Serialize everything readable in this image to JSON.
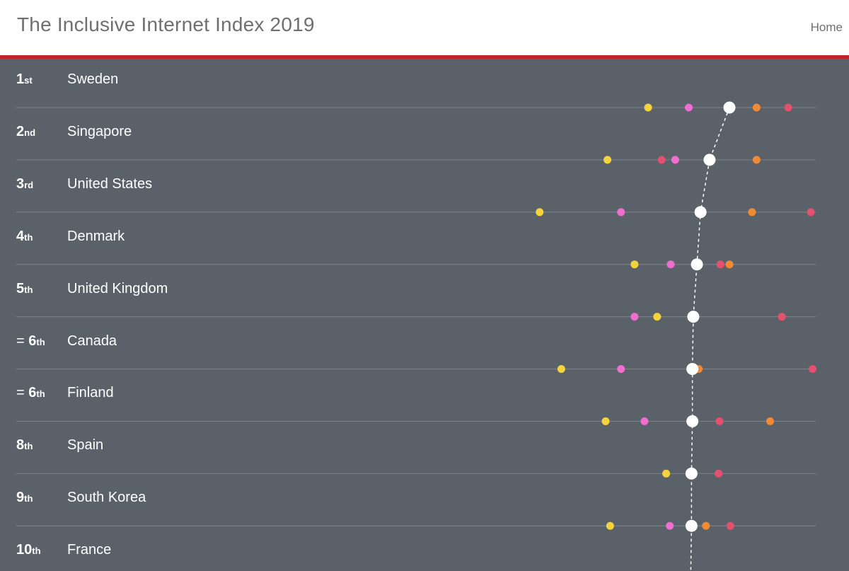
{
  "header": {
    "title": "The Inclusive Internet Index 2019",
    "home_label": "Home"
  },
  "colors": {
    "background": "#5b6168",
    "accent": "#c1232b",
    "overall_dot": "#ffffff",
    "connector": "#ffffff",
    "row_line": "#7e848b"
  },
  "chart_data": {
    "type": "scatter",
    "title": "",
    "xlabel": "",
    "ylabel": "",
    "xlim": [
      60,
      100
    ],
    "grid": false,
    "legend": "none",
    "category_colors": [
      "#f5d33c",
      "#ee6fd0",
      "#f08a35",
      "#e4506e"
    ],
    "rows": [
      {
        "rank_prefix": "",
        "rank_num": "1",
        "rank_suffix": "st",
        "country": "Sweden",
        "overall": 91.0,
        "points": [
          82.0,
          86.5,
          94.0,
          97.5
        ]
      },
      {
        "rank_prefix": "",
        "rank_num": "2",
        "rank_suffix": "nd",
        "country": "Singapore",
        "overall": 88.8,
        "points": [
          77.5,
          85.0,
          94.0,
          83.5
        ]
      },
      {
        "rank_prefix": "",
        "rank_num": "3",
        "rank_suffix": "rd",
        "country": "United States",
        "overall": 87.8,
        "points": [
          70.0,
          79.0,
          93.5,
          100.0
        ]
      },
      {
        "rank_prefix": "",
        "rank_num": "4",
        "rank_suffix": "th",
        "country": "Denmark",
        "overall": 87.4,
        "points": [
          80.5,
          84.5,
          91.0,
          90.0
        ]
      },
      {
        "rank_prefix": "",
        "rank_num": "5",
        "rank_suffix": "th",
        "country": "United Kingdom",
        "overall": 87.0,
        "points": [
          83.0,
          80.5,
          null,
          96.8
        ]
      },
      {
        "rank_prefix": "= ",
        "rank_num": "6",
        "rank_suffix": "th",
        "country": "Canada",
        "overall": 86.9,
        "points": [
          72.4,
          79.0,
          87.6,
          100.2
        ]
      },
      {
        "rank_prefix": "= ",
        "rank_num": "6",
        "rank_suffix": "th",
        "country": "Finland",
        "overall": 86.9,
        "points": [
          77.3,
          81.6,
          95.5,
          89.9
        ]
      },
      {
        "rank_prefix": "",
        "rank_num": "8",
        "rank_suffix": "th",
        "country": "Spain",
        "overall": 86.8,
        "points": [
          84.0,
          null,
          null,
          89.8
        ]
      },
      {
        "rank_prefix": "",
        "rank_num": "9",
        "rank_suffix": "th",
        "country": "South Korea",
        "overall": 86.8,
        "points": [
          77.8,
          84.4,
          88.4,
          91.1
        ]
      },
      {
        "rank_prefix": "",
        "rank_num": "10",
        "rank_suffix": "th",
        "country": "France",
        "overall": null,
        "points": []
      }
    ]
  }
}
